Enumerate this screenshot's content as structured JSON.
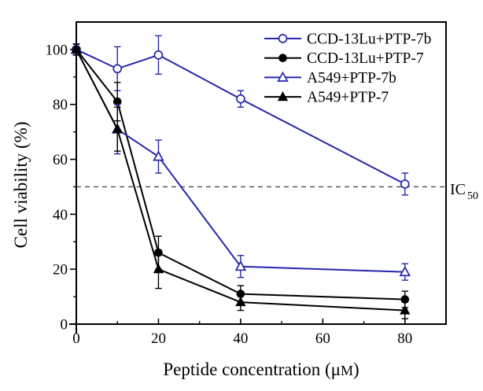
{
  "figure": {
    "background_color": "#ffffff",
    "frame_color": "#000000",
    "accent_blue": "#2626ae",
    "series_black": "#000000",
    "reference_line_color": "#4d4d4d"
  },
  "chart_data": {
    "type": "line",
    "x": [
      0,
      10,
      20,
      40,
      80
    ],
    "series": [
      {
        "name": "CCD-13Lu+PTP-7b",
        "color": "#2626ae",
        "marker": "circle-open",
        "values": [
          100,
          93,
          98,
          82,
          51
        ],
        "errors": [
          2,
          8,
          7,
          3,
          4
        ]
      },
      {
        "name": "CCD-13Lu+PTP-7",
        "color": "#000000",
        "marker": "circle-filled",
        "values": [
          100,
          81,
          26,
          11,
          9
        ],
        "errors": [
          2,
          7,
          6,
          3,
          3
        ]
      },
      {
        "name": "A549+PTP-7b",
        "color": "#2626ae",
        "marker": "triangle-open",
        "values": [
          100,
          71,
          61,
          21,
          19
        ],
        "errors": [
          2,
          9,
          6,
          4,
          3
        ]
      },
      {
        "name": "A549+PTP-7",
        "color": "#000000",
        "marker": "triangle-filled",
        "values": [
          100,
          71,
          20,
          8,
          5
        ],
        "errors": [
          2,
          8,
          7,
          3,
          3
        ]
      }
    ],
    "xlabel": "Peptide concentration (μM)",
    "ylabel": "Cell viability (%)",
    "xlim": [
      0,
      90
    ],
    "ylim": [
      0,
      110
    ],
    "x_major_ticks": [
      0,
      20,
      40,
      60,
      80
    ],
    "x_minor_ticks": [
      10,
      30,
      50,
      70
    ],
    "y_major_ticks": [
      0,
      20,
      40,
      60,
      80,
      100
    ],
    "y_minor_ticks": [
      10,
      30,
      50,
      70,
      90
    ],
    "grid": false,
    "legend_position": "top-right-inside",
    "reference_line": {
      "y": 50,
      "style": "dashed",
      "label_main": "IC",
      "label_sub": "50"
    }
  }
}
